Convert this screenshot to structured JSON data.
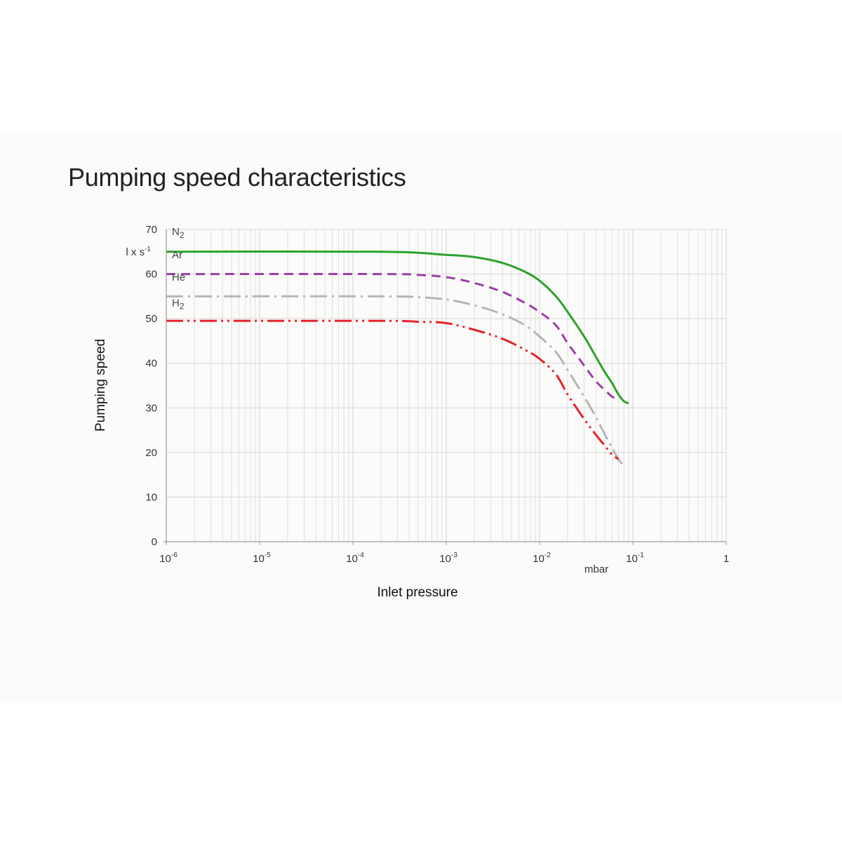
{
  "chart_data": {
    "type": "line",
    "title": "Pumping speed characteristics",
    "xlabel": "Inlet pressure",
    "ylabel": "Pumping speed",
    "x_unit": "mbar",
    "y_unit": "l x s-1",
    "x_scale": "log",
    "xlim": [
      1e-06,
      1
    ],
    "ylim": [
      0,
      70
    ],
    "grid": true,
    "x_tick_labels": [
      {
        "value": 1e-06,
        "base": "10",
        "exp": "-6"
      },
      {
        "value": 1e-05,
        "base": "10",
        "exp": "-5"
      },
      {
        "value": 0.0001,
        "base": "10",
        "exp": "-4"
      },
      {
        "value": 0.001,
        "base": "10",
        "exp": "-3"
      },
      {
        "value": 0.01,
        "base": "10",
        "exp": "-2"
      },
      {
        "value": 0.1,
        "base": "10",
        "exp": "-1"
      },
      {
        "value": 1,
        "base": "1",
        "exp": ""
      }
    ],
    "y_ticks": [
      0,
      10,
      20,
      30,
      40,
      50,
      60,
      70
    ],
    "y_unit_label": {
      "base": "l x s",
      "exp": "-1"
    },
    "series": [
      {
        "name": "N2",
        "label_base": "N",
        "label_sub": "2",
        "color": "#2ea12e",
        "dash": "solid",
        "x": [
          1e-06,
          0.0002,
          0.001,
          0.002,
          0.004,
          0.007,
          0.01,
          0.015,
          0.02,
          0.03,
          0.04,
          0.05,
          0.06,
          0.07,
          0.08,
          0.09
        ],
        "y": [
          65,
          65,
          64.3,
          63.8,
          62.5,
          60.5,
          58.5,
          55,
          51.5,
          46,
          41.5,
          38,
          35.5,
          33,
          31.5,
          31
        ]
      },
      {
        "name": "Ar",
        "label_base": "Ar",
        "label_sub": "",
        "color": "#9b3fa6",
        "dash": "dashed",
        "x": [
          1e-06,
          0.0002,
          0.0005,
          0.001,
          0.002,
          0.004,
          0.007,
          0.01,
          0.015,
          0.02,
          0.03,
          0.04,
          0.05,
          0.06,
          0.07
        ],
        "y": [
          60,
          60,
          59.8,
          59.3,
          58,
          56,
          53.5,
          51.5,
          48.5,
          44.5,
          39.5,
          36,
          34,
          32.5,
          32
        ]
      },
      {
        "name": "He",
        "label_base": "He",
        "label_sub": "",
        "color": "#b5b5b5",
        "dash": "dashdot",
        "x": [
          1e-06,
          0.0002,
          0.0005,
          0.001,
          0.002,
          0.004,
          0.007,
          0.01,
          0.015,
          0.02,
          0.03,
          0.04,
          0.05,
          0.06,
          0.07,
          0.08
        ],
        "y": [
          55,
          55,
          54.8,
          54.3,
          53,
          51,
          48.5,
          46,
          42.5,
          38.5,
          32.5,
          28,
          24,
          21,
          18.5,
          17
        ]
      },
      {
        "name": "H2",
        "label_base": "H",
        "label_sub": "2",
        "color": "#e8222b",
        "dash": "dashdotdot",
        "x": [
          1e-06,
          0.0002,
          0.0005,
          0.001,
          0.002,
          0.004,
          0.007,
          0.01,
          0.015,
          0.02,
          0.03,
          0.04,
          0.05,
          0.06,
          0.07
        ],
        "y": [
          49.5,
          49.5,
          49.3,
          49,
          47.5,
          45.5,
          43,
          41,
          37.5,
          33,
          27.5,
          24,
          21.5,
          19.5,
          18.5
        ]
      }
    ]
  }
}
